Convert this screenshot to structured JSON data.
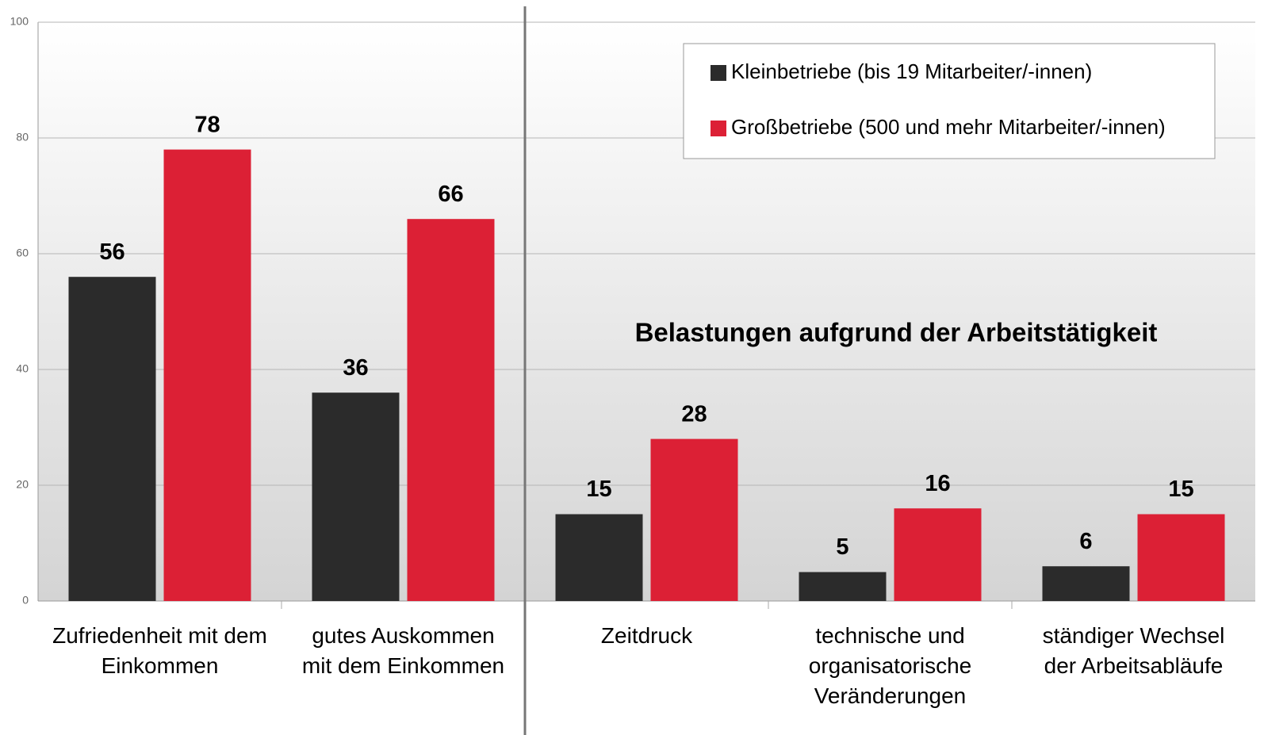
{
  "chart_data": {
    "type": "bar",
    "categories": [
      [
        "Zufriedenheit mit dem",
        "Einkommen"
      ],
      [
        "gutes Auskommen",
        "mit dem Einkommen"
      ],
      [
        "Zeitdruck"
      ],
      [
        "technische und",
        "organisatorische",
        "Veränderungen"
      ],
      [
        "ständiger Wechsel",
        "der Arbeitsabläufe"
      ]
    ],
    "series": [
      {
        "name": "Kleinbetriebe (bis 19 Mitarbeiter/-innen)",
        "color": "#2b2b2b",
        "values": [
          56,
          36,
          15,
          5,
          6
        ]
      },
      {
        "name": "Großbetriebe (500 und mehr Mitarbeiter/-innen)",
        "color": "#dc2035",
        "values": [
          78,
          66,
          28,
          16,
          15
        ]
      }
    ],
    "annotation": "Belastungen aufgrund der Arbeitstätigkeit",
    "ylim": [
      0,
      100
    ],
    "yticks": [
      0,
      20,
      40,
      60,
      80,
      100
    ],
    "grid": true,
    "legend": "top-right"
  }
}
